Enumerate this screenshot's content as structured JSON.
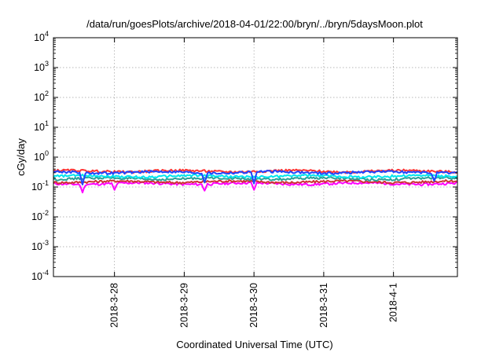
{
  "chart_data": {
    "type": "line",
    "title": "/data/run/goesPlots/archive/2018-04-01/22:00/bryn/../bryn/5daysMoon.plot",
    "xlabel": "Coordinated Universal Time (UTC)",
    "ylabel": "cGy/day",
    "y_scale": "log",
    "ylim": [
      0.0001,
      10000
    ],
    "y_ticks": [
      {
        "base": "10",
        "exp": "-4",
        "value": 0.0001
      },
      {
        "base": "10",
        "exp": "-3",
        "value": 0.001
      },
      {
        "base": "10",
        "exp": "-2",
        "value": 0.01
      },
      {
        "base": "10",
        "exp": "-1",
        "value": 0.1
      },
      {
        "base": "10",
        "exp": "0",
        "value": 1
      },
      {
        "base": "10",
        "exp": "1",
        "value": 10
      },
      {
        "base": "10",
        "exp": "2",
        "value": 100
      },
      {
        "base": "10",
        "exp": "3",
        "value": 1000
      },
      {
        "base": "10",
        "exp": "4",
        "value": 10000
      }
    ],
    "xlim": [
      "2018-03-27T03:00",
      "2018-04-01T22:00"
    ],
    "x_ticks": [
      {
        "label": "2018-3-28",
        "value": "2018-03-28T00:00"
      },
      {
        "label": "2018-3-29",
        "value": "2018-03-29T00:00"
      },
      {
        "label": "2018-3-30",
        "value": "2018-03-30T00:00"
      },
      {
        "label": "2018-3-31",
        "value": "2018-03-31T00:00"
      },
      {
        "label": "2018-4-1",
        "value": "2018-04-01T00:00"
      }
    ],
    "grid": true,
    "legend": "none",
    "series": [
      {
        "color": "#ff00ff",
        "level": 0.13,
        "x_start": "2018-03-27T03:00",
        "x_end": "2018-04-01T22:00",
        "dips": [
          {
            "x": "2018-03-27T13:00",
            "y": 0.065
          },
          {
            "x": "2018-03-28T00:00",
            "y": 0.08
          },
          {
            "x": "2018-03-29T07:00",
            "y": 0.075
          },
          {
            "x": "2018-03-30T00:00",
            "y": 0.08
          }
        ]
      },
      {
        "color": "#cc3333",
        "level": 0.15,
        "x_start": "2018-03-27T03:00",
        "x_end": "2018-04-01T22:00",
        "dips": []
      },
      {
        "color": "#2aa198",
        "level": 0.19,
        "x_start": "2018-03-27T03:00",
        "x_end": "2018-04-01T22:00",
        "dips": []
      },
      {
        "color": "#00e5ee",
        "level": 0.23,
        "x_start": "2018-03-27T03:00",
        "x_end": "2018-04-01T22:00",
        "dips": []
      },
      {
        "color": "#ff3333",
        "level": 0.34,
        "x_start": "2018-03-27T03:00",
        "x_end": "2018-04-01T22:00",
        "dips": []
      },
      {
        "color": "#2244ff",
        "level": 0.31,
        "x_start": "2018-03-27T03:00",
        "x_end": "2018-04-01T22:00",
        "dips": [
          {
            "x": "2018-03-27T13:00",
            "y": 0.12
          },
          {
            "x": "2018-03-29T07:00",
            "y": 0.14
          },
          {
            "x": "2018-03-30T00:00",
            "y": 0.13
          },
          {
            "x": "2018-04-01T14:00",
            "y": 0.16
          }
        ]
      }
    ]
  }
}
